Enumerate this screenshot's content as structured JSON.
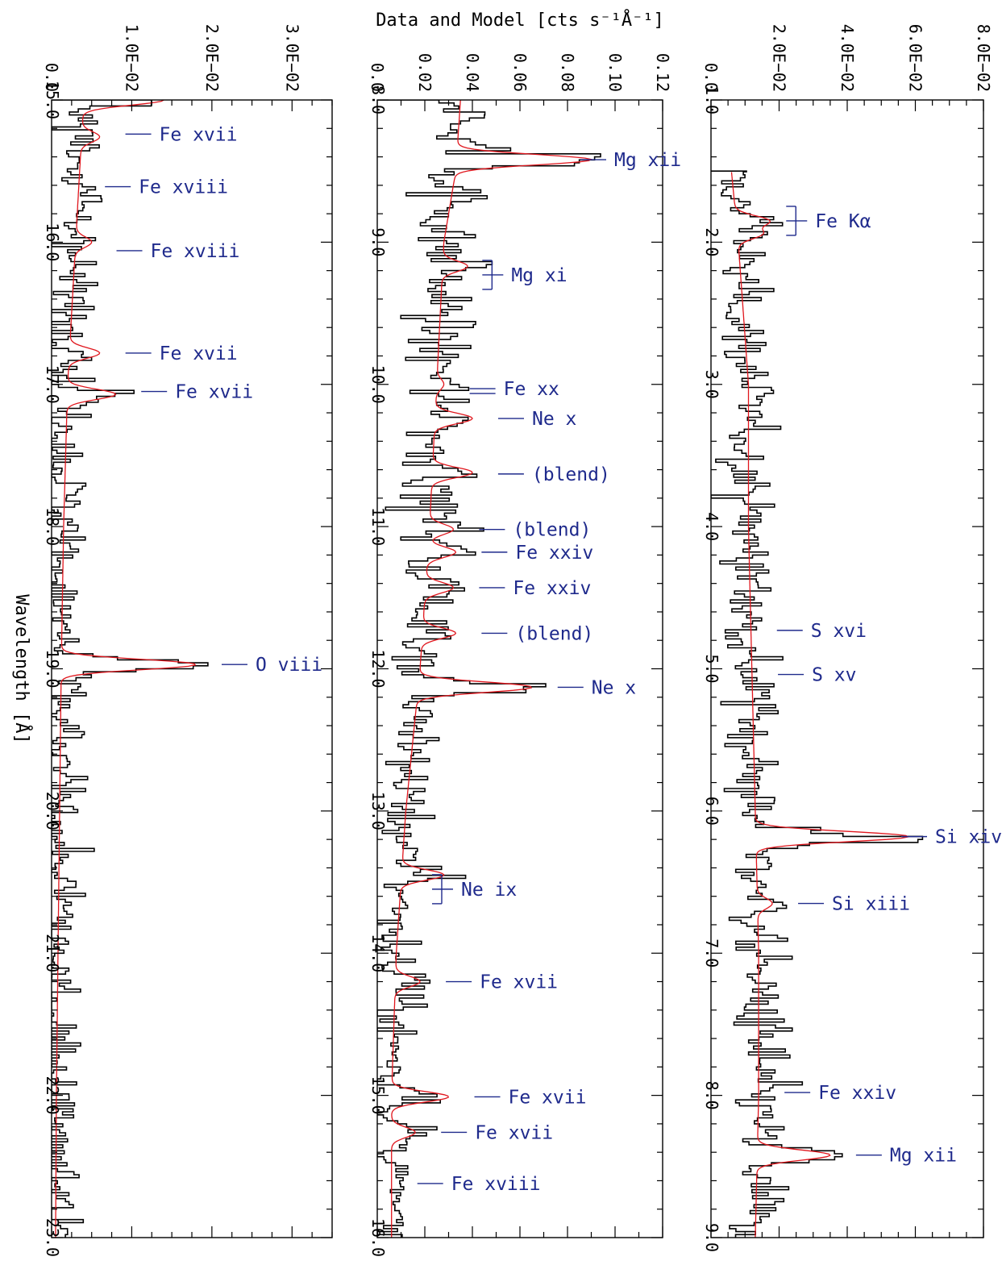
{
  "figure": {
    "ylabel": "Data and Model [cts s⁻¹Å⁻¹]",
    "xlabel": "Wavelength [Å]"
  },
  "colors": {
    "data": "#000000",
    "model": "#e0161d",
    "labels": "#1f2a8c"
  },
  "chart_data": [
    {
      "type": "line",
      "panel": "top",
      "xlim": [
        1.0,
        9.0
      ],
      "ylim": [
        0.0,
        0.08
      ],
      "xticks": [
        "1.0",
        "2.0",
        "3.0",
        "4.0",
        "5.0",
        "6.0",
        "7.0",
        "8.0",
        "9.0"
      ],
      "yticks": [
        "0.0",
        "2.0E−02",
        "4.0E−02",
        "6.0E−02",
        "8.0E−02"
      ],
      "data_start": 1.5,
      "continuum": [
        [
          1.5,
          0.006
        ],
        [
          2.0,
          0.008
        ],
        [
          3.0,
          0.011
        ],
        [
          4.0,
          0.011
        ],
        [
          5.0,
          0.012
        ],
        [
          6.0,
          0.013
        ],
        [
          7.0,
          0.014
        ],
        [
          8.0,
          0.014
        ],
        [
          9.0,
          0.013
        ]
      ],
      "peaks": [
        [
          1.85,
          0.017
        ],
        [
          1.94,
          0.015
        ],
        [
          6.18,
          0.058
        ],
        [
          6.65,
          0.018
        ],
        [
          8.42,
          0.035
        ]
      ],
      "lines": [
        {
          "wl": 1.85,
          "label": "Fe Kα",
          "marker": "bracket"
        },
        {
          "wl": 4.73,
          "label": "S xvi",
          "marker": "dash"
        },
        {
          "wl": 5.04,
          "label": "S xv",
          "marker": "dash"
        },
        {
          "wl": 6.18,
          "label": "Si xiv",
          "marker": "dash"
        },
        {
          "wl": 6.65,
          "label": "Si xiii",
          "marker": "dash"
        },
        {
          "wl": 7.98,
          "label": "Fe xxiv",
          "marker": "dash"
        },
        {
          "wl": 8.42,
          "label": "Mg xii",
          "marker": "dash"
        }
      ]
    },
    {
      "type": "line",
      "panel": "middle",
      "xlim": [
        8.0,
        16.0
      ],
      "ylim": [
        0.0,
        0.12
      ],
      "xticks": [
        "8.0",
        "9.0",
        "10.0",
        "11.0",
        "12.0",
        "13.0",
        "14.0",
        "15.0",
        "16.0"
      ],
      "yticks": [
        "0.0",
        "0.02",
        "0.04",
        "0.06",
        "0.08",
        "0.10",
        "0.12"
      ],
      "data_start": 8.0,
      "continuum": [
        [
          8.0,
          0.035
        ],
        [
          8.5,
          0.033
        ],
        [
          9.0,
          0.028
        ],
        [
          10.0,
          0.025
        ],
        [
          11.0,
          0.022
        ],
        [
          12.0,
          0.018
        ],
        [
          13.0,
          0.012
        ],
        [
          14.0,
          0.008
        ],
        [
          15.0,
          0.006
        ],
        [
          16.0,
          0.006
        ]
      ],
      "peaks": [
        [
          8.42,
          0.09
        ],
        [
          9.17,
          0.038
        ],
        [
          10.0,
          0.028
        ],
        [
          10.24,
          0.04
        ],
        [
          10.62,
          0.04
        ],
        [
          11.02,
          0.032
        ],
        [
          11.18,
          0.033
        ],
        [
          11.43,
          0.032
        ],
        [
          11.75,
          0.033
        ],
        [
          12.13,
          0.065
        ],
        [
          13.45,
          0.028
        ],
        [
          14.2,
          0.018
        ],
        [
          15.01,
          0.03
        ],
        [
          15.26,
          0.016
        ]
      ],
      "lines": [
        {
          "wl": 8.42,
          "label": "Mg xii",
          "marker": "dash"
        },
        {
          "wl": 9.23,
          "label": "Mg xi",
          "marker": "bracket"
        },
        {
          "wl": 10.03,
          "label": "Fe xx",
          "marker": "double"
        },
        {
          "wl": 10.24,
          "label": "Ne x",
          "marker": "dash"
        },
        {
          "wl": 10.63,
          "label": "(blend)",
          "marker": "dash"
        },
        {
          "wl": 11.02,
          "label": "(blend)",
          "marker": "dash"
        },
        {
          "wl": 11.18,
          "label": "Fe xxiv",
          "marker": "dash"
        },
        {
          "wl": 11.43,
          "label": "Fe xxiv",
          "marker": "dash"
        },
        {
          "wl": 11.75,
          "label": "(blend)",
          "marker": "dash"
        },
        {
          "wl": 12.13,
          "label": "Ne x",
          "marker": "dash"
        },
        {
          "wl": 13.55,
          "label": "Ne ix",
          "marker": "bracket"
        },
        {
          "wl": 14.2,
          "label": "Fe xvii",
          "marker": "dash"
        },
        {
          "wl": 15.01,
          "label": "Fe xvii",
          "marker": "dash"
        },
        {
          "wl": 15.26,
          "label": "Fe xvii",
          "marker": "dash"
        },
        {
          "wl": 15.62,
          "label": "Fe xviii",
          "marker": "dash"
        }
      ]
    },
    {
      "type": "line",
      "panel": "bottom",
      "xlim": [
        15.0,
        23.0
      ],
      "ylim": [
        0.0,
        0.035
      ],
      "xticks": [
        "15.0",
        "16.0",
        "17.0",
        "18.0",
        "19.0",
        "20.0",
        "21.0",
        "22.0",
        "23.0"
      ],
      "yticks": [
        "0.0",
        "1.0E−02",
        "2.0E−02",
        "3.0E−02"
      ],
      "data_start": 15.0,
      "continuum": [
        [
          15.0,
          0.004
        ],
        [
          16.0,
          0.003
        ],
        [
          17.0,
          0.002
        ],
        [
          18.0,
          0.0015
        ],
        [
          19.0,
          0.0012
        ],
        [
          20.0,
          0.001
        ],
        [
          21.0,
          0.0008
        ],
        [
          22.0,
          0.0006
        ],
        [
          23.0,
          0.0005
        ]
      ],
      "peaks": [
        [
          15.0,
          0.014
        ],
        [
          15.26,
          0.006
        ],
        [
          16.0,
          0.005
        ],
        [
          16.78,
          0.006
        ],
        [
          17.07,
          0.008
        ],
        [
          18.97,
          0.018
        ]
      ],
      "lines": [
        {
          "wl": 15.24,
          "label": "Fe xvii",
          "marker": "dash"
        },
        {
          "wl": 15.61,
          "label": "Fe xviii",
          "marker": "dash"
        },
        {
          "wl": 16.06,
          "label": "Fe xviii",
          "marker": "dash"
        },
        {
          "wl": 16.78,
          "label": "Fe xvii",
          "marker": "dash"
        },
        {
          "wl": 17.05,
          "label": "Fe xvii",
          "marker": "dash"
        },
        {
          "wl": 18.97,
          "label": "O viii",
          "marker": "dash"
        }
      ]
    }
  ]
}
